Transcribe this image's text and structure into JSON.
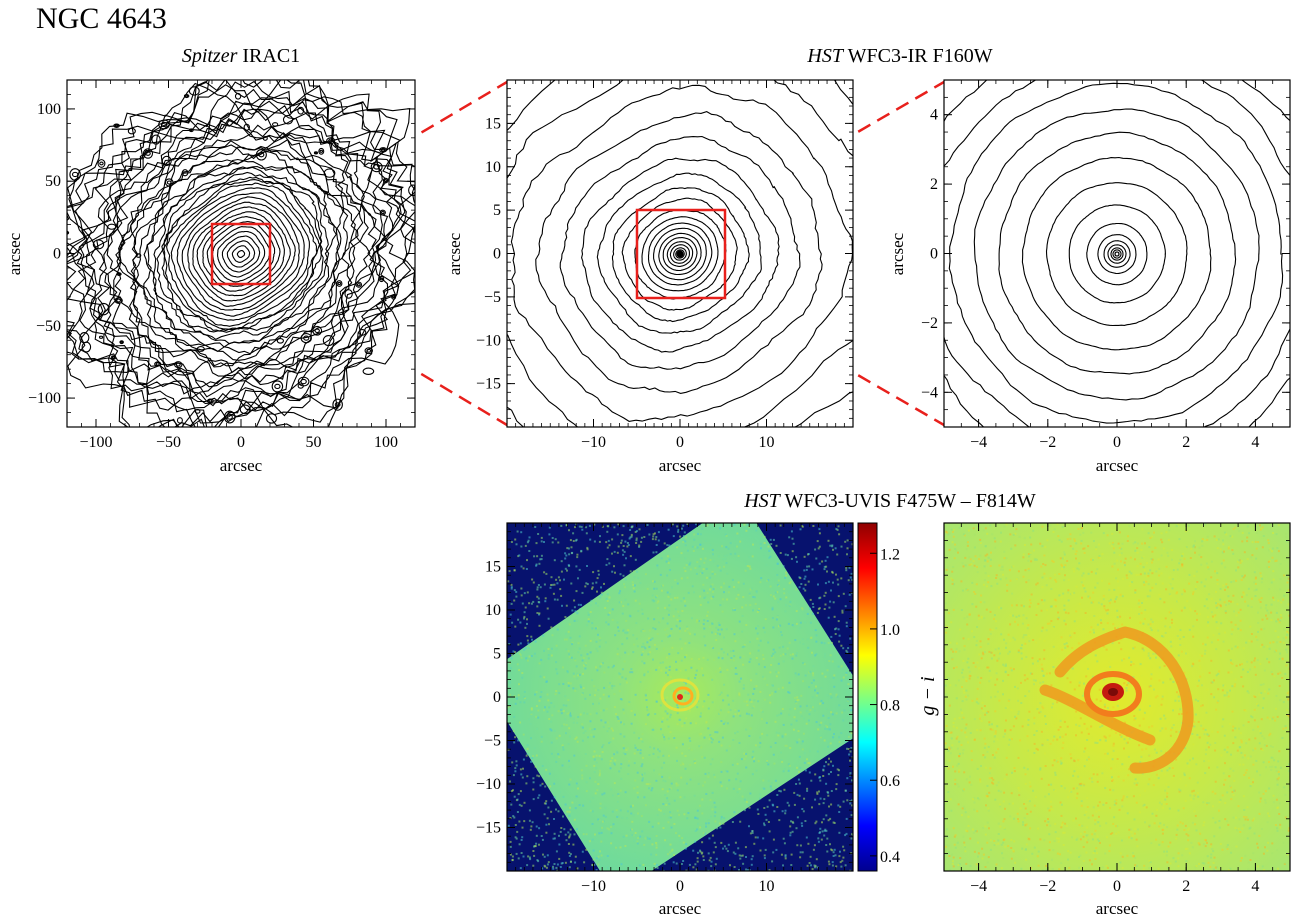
{
  "figure": {
    "title": "NGC 4643",
    "top_left_title_italic": "Spitzer",
    "top_left_title_rest": " IRAC1",
    "top_right_title_italic": "HST",
    "top_right_title_rest": " WFC3-IR F160W",
    "bottom_title_italic": "HST",
    "bottom_title_rest": " WFC3-UVIS F475W – F814W",
    "axis_label": "arcsec",
    "colorbar_label": "g − i"
  },
  "panels": {
    "irac1": {
      "x_ticks": [
        "−100",
        "−50",
        "0",
        "50",
        "100"
      ],
      "y_ticks": [
        "100",
        "50",
        "0",
        "−50",
        "−100"
      ],
      "range": [
        -120,
        120
      ]
    },
    "f160w_mid": {
      "x_ticks": [
        "−10",
        "0",
        "10"
      ],
      "y_ticks": [
        "15",
        "10",
        "5",
        "0",
        "−5",
        "−10",
        "−15"
      ],
      "range": [
        -20,
        20
      ]
    },
    "f160w_zoom": {
      "x_ticks": [
        "−4",
        "−2",
        "0",
        "2",
        "4"
      ],
      "y_ticks": [
        "4",
        "2",
        "0",
        "−2",
        "−4"
      ],
      "range": [
        -5,
        5
      ]
    },
    "color_mid": {
      "x_ticks": [
        "−10",
        "0",
        "10"
      ],
      "y_ticks": [
        "15",
        "10",
        "5",
        "0",
        "−5",
        "−10",
        "−15"
      ],
      "range": [
        -20,
        20
      ]
    },
    "color_zoom": {
      "x_ticks": [
        "−4",
        "−2",
        "0",
        "2",
        "4"
      ],
      "range": [
        -5,
        5
      ]
    }
  },
  "colorbar": {
    "ticks": [
      "1.2",
      "1.0",
      "0.8",
      "0.6",
      "0.4"
    ],
    "range": [
      0.36,
      1.28
    ]
  },
  "colors": {
    "zoom_box": "#e8201c",
    "contour": "#000000",
    "background_mask": "#07126e",
    "field_green": "#7fe08a"
  }
}
